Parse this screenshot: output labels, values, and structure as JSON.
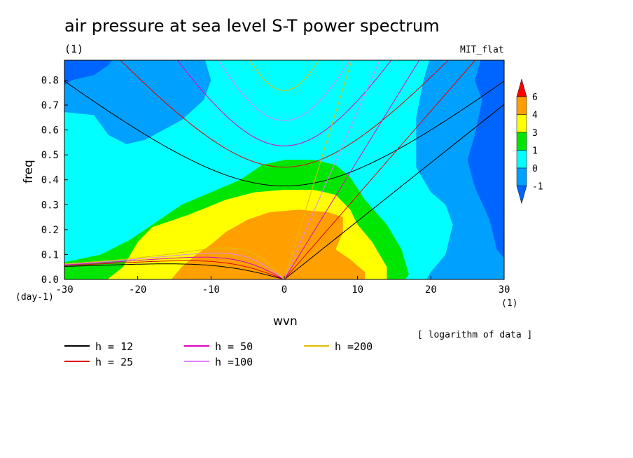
{
  "chart_data": {
    "type": "heatmap",
    "title": "air pressure at sea level S-T power spectrum",
    "units_label": "(1)",
    "model_label": "MIT_flat",
    "xlabel": "wvn",
    "ylabel": "freq",
    "x_units": "(1)",
    "y_units": "(day-1)",
    "note": "[ logarithm of data ]",
    "xlim": [
      -30,
      30
    ],
    "ylim": [
      0,
      0.88
    ],
    "x_ticks": [
      -30,
      -20,
      -10,
      0,
      10,
      20,
      30
    ],
    "y_ticks": [
      0.0,
      0.1,
      0.2,
      0.3,
      0.4,
      0.5,
      0.6,
      0.7,
      0.8
    ],
    "colorbar": {
      "levels": [
        -1,
        0,
        1,
        3,
        4,
        6
      ],
      "colors": [
        "#0064ff",
        "#00a0ff",
        "#00ffff",
        "#00e600",
        "#ffff00",
        "#ffa000",
        "#ff0000"
      ]
    },
    "dispersion_curves": [
      {
        "label": "h = 12",
        "h": 12,
        "color": "#000000"
      },
      {
        "label": "h = 25",
        "h": 25,
        "color": "#e00000"
      },
      {
        "label": "h = 50",
        "h": 50,
        "color": "#e000c0"
      },
      {
        "label": "h =100",
        "h": 100,
        "color": "#e080ff"
      },
      {
        "label": "h =200",
        "h": 200,
        "color": "#e0c000"
      }
    ]
  }
}
